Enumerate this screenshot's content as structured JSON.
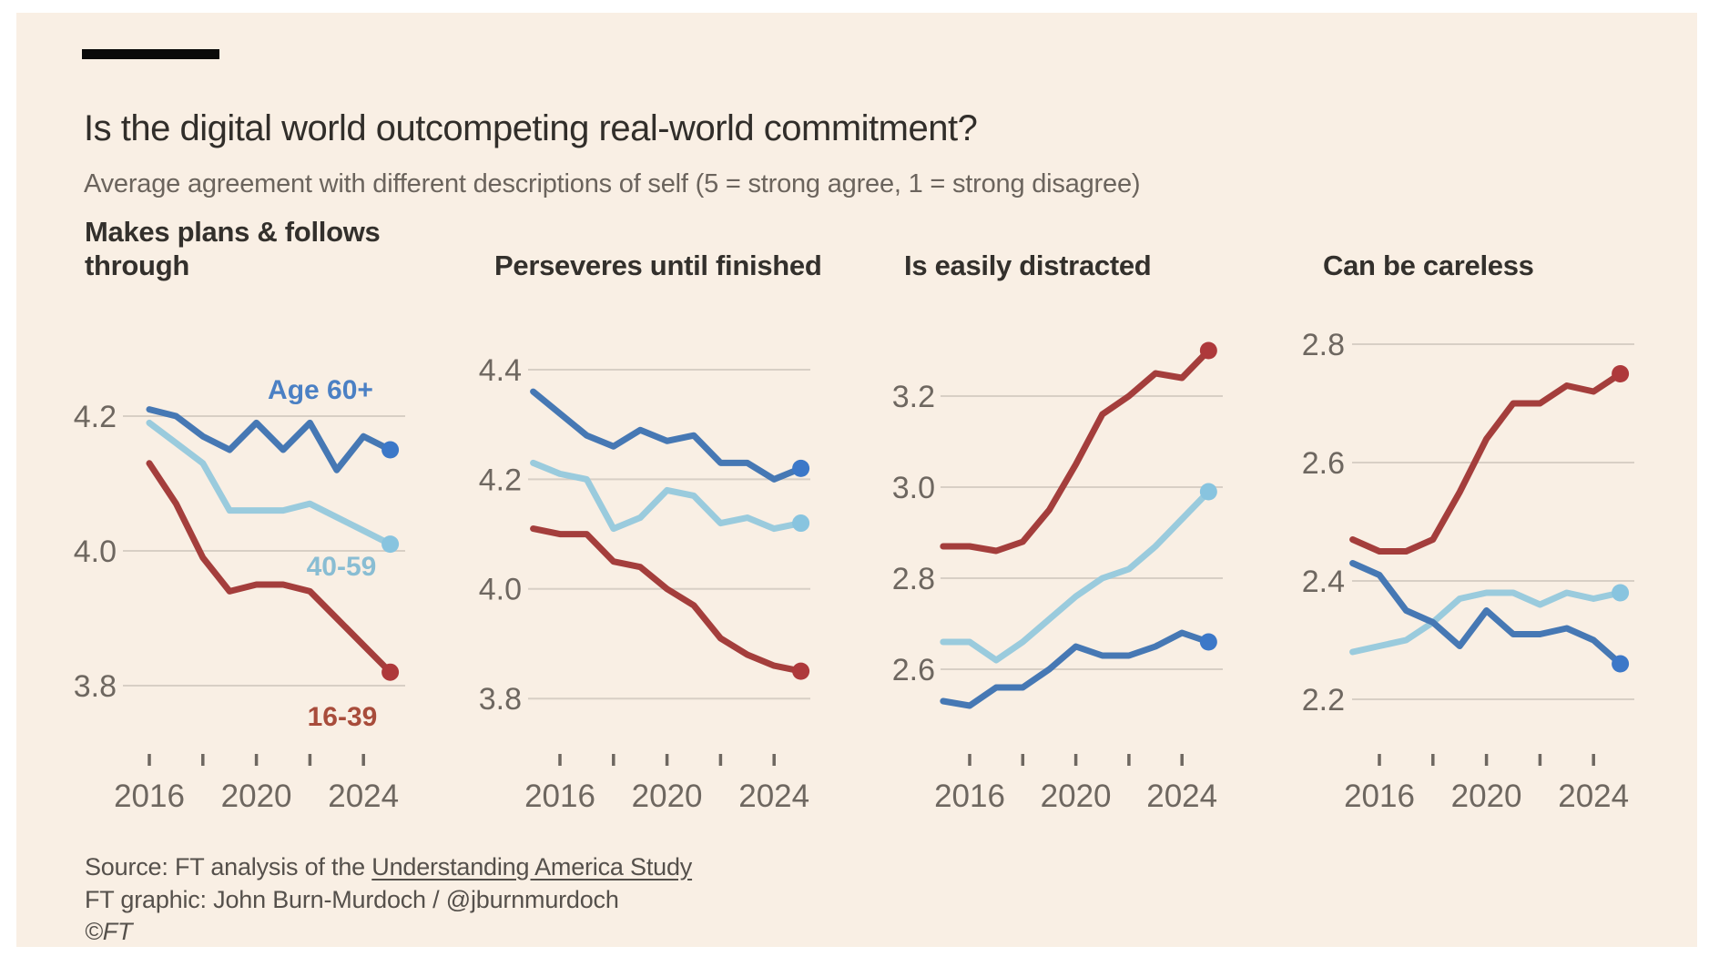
{
  "header": {
    "title": "Is the digital world outcompeting real-world commitment?",
    "subtitle": "Average agreement with different descriptions of self (5 = strong agree, 1 = strong disagree)"
  },
  "legend": {
    "age_60_plus": "Age 60+",
    "age_40_59": "40-59",
    "age_16_39": "16-39"
  },
  "colors": {
    "background": "#F9EFE4",
    "grid": "#D8CFC5",
    "axis_text": "#6E6760",
    "title_text": "#312E2A",
    "subtitle_text": "#6B645D",
    "footer_text": "#55504B",
    "age_60_plus": "#4678B4",
    "age_60_plus_dot": "#3C78C8",
    "age_60_plus_label": "#4B80C4",
    "age_40_59": "#9ACBDD",
    "age_40_59_dot": "#88C4DF",
    "age_40_59_label": "#89BDD3",
    "age_16_39": "#A43E3C",
    "age_16_39_dot": "#AE393B",
    "age_16_39_label": "#A84C3B"
  },
  "chart_data": [
    {
      "type": "line",
      "title": "Makes plans & follows through",
      "start_year": 2016,
      "x_ticks": [
        2016,
        2018,
        2020,
        2022,
        2024
      ],
      "x_tick_labels": [
        "2016",
        "2020",
        "2024"
      ],
      "yticks": [
        "4.2",
        "4.0",
        "3.8"
      ],
      "ylim": [
        3.76,
        4.26
      ],
      "grid": true,
      "legend_position": "inline-labels",
      "series": [
        {
          "name": "Age 60+",
          "color_key": "age_60_plus",
          "values": [
            4.21,
            4.2,
            4.17,
            4.15,
            4.19,
            4.15,
            4.19,
            4.12,
            4.17,
            4.15
          ]
        },
        {
          "name": "40-59",
          "color_key": "age_40_59",
          "values": [
            4.19,
            4.16,
            4.13,
            4.06,
            4.06,
            4.06,
            4.07,
            4.05,
            4.03,
            4.01
          ]
        },
        {
          "name": "16-39",
          "color_key": "age_16_39",
          "values": [
            4.13,
            4.07,
            3.99,
            3.94,
            3.95,
            3.95,
            3.94,
            3.9,
            3.86,
            3.82
          ]
        }
      ]
    },
    {
      "type": "line",
      "title": "Perseveres until finished",
      "start_year": 2015,
      "x_ticks": [
        2016,
        2018,
        2020,
        2022,
        2024
      ],
      "x_tick_labels": [
        "2016",
        "2020",
        "2024"
      ],
      "yticks": [
        "4.4",
        "4.2",
        "4.0",
        "3.8"
      ],
      "ylim": [
        3.78,
        4.42
      ],
      "grid": true,
      "series": [
        {
          "name": "Age 60+",
          "color_key": "age_60_plus",
          "values": [
            4.36,
            4.32,
            4.28,
            4.26,
            4.29,
            4.27,
            4.28,
            4.23,
            4.23,
            4.2,
            4.22
          ]
        },
        {
          "name": "40-59",
          "color_key": "age_40_59",
          "values": [
            4.23,
            4.21,
            4.2,
            4.11,
            4.13,
            4.18,
            4.17,
            4.12,
            4.13,
            4.11,
            4.12
          ]
        },
        {
          "name": "16-39",
          "color_key": "age_16_39",
          "values": [
            4.11,
            4.1,
            4.1,
            4.05,
            4.04,
            4.0,
            3.97,
            3.91,
            3.88,
            3.86,
            3.85
          ]
        }
      ]
    },
    {
      "type": "line",
      "title": "Is easily distracted",
      "start_year": 2015,
      "x_ticks": [
        2016,
        2018,
        2020,
        2022,
        2024
      ],
      "x_tick_labels": [
        "2016",
        "2020",
        "2024"
      ],
      "yticks": [
        "3.2",
        "3.0",
        "2.8",
        "2.6"
      ],
      "ylim": [
        2.5,
        3.32
      ],
      "grid": true,
      "series": [
        {
          "name": "Age 60+",
          "color_key": "age_60_plus",
          "values": [
            2.53,
            2.52,
            2.56,
            2.56,
            2.6,
            2.65,
            2.63,
            2.63,
            2.65,
            2.68,
            2.66
          ]
        },
        {
          "name": "40-59",
          "color_key": "age_40_59",
          "values": [
            2.66,
            2.66,
            2.62,
            2.66,
            2.71,
            2.76,
            2.8,
            2.82,
            2.87,
            2.93,
            2.99
          ]
        },
        {
          "name": "16-39",
          "color_key": "age_16_39",
          "values": [
            2.87,
            2.87,
            2.86,
            2.88,
            2.95,
            3.05,
            3.16,
            3.2,
            3.25,
            3.24,
            3.3
          ]
        }
      ]
    },
    {
      "type": "line",
      "title": "Can be careless",
      "start_year": 2015,
      "x_ticks": [
        2016,
        2018,
        2020,
        2022,
        2024
      ],
      "x_tick_labels": [
        "2016",
        "2020",
        "2024"
      ],
      "yticks": [
        "2.8",
        "2.6",
        "2.4",
        "2.2"
      ],
      "ylim": [
        2.18,
        2.82
      ],
      "grid": true,
      "series": [
        {
          "name": "Age 60+",
          "color_key": "age_60_plus",
          "values": [
            2.43,
            2.41,
            2.35,
            2.33,
            2.29,
            2.35,
            2.31,
            2.31,
            2.32,
            2.3,
            2.26
          ]
        },
        {
          "name": "40-59",
          "color_key": "age_40_59",
          "values": [
            2.28,
            2.29,
            2.3,
            2.33,
            2.37,
            2.38,
            2.38,
            2.36,
            2.38,
            2.37,
            2.38
          ]
        },
        {
          "name": "16-39",
          "color_key": "age_16_39",
          "values": [
            2.47,
            2.45,
            2.45,
            2.47,
            2.55,
            2.64,
            2.7,
            2.7,
            2.73,
            2.72,
            2.75
          ]
        }
      ]
    }
  ],
  "footer": {
    "source_prefix": "Source: FT analysis of the ",
    "source_link": "Understanding America Study",
    "credit": "FT graphic: John Burn-Murdoch / @jburnmurdoch",
    "copyright": "©FT"
  }
}
